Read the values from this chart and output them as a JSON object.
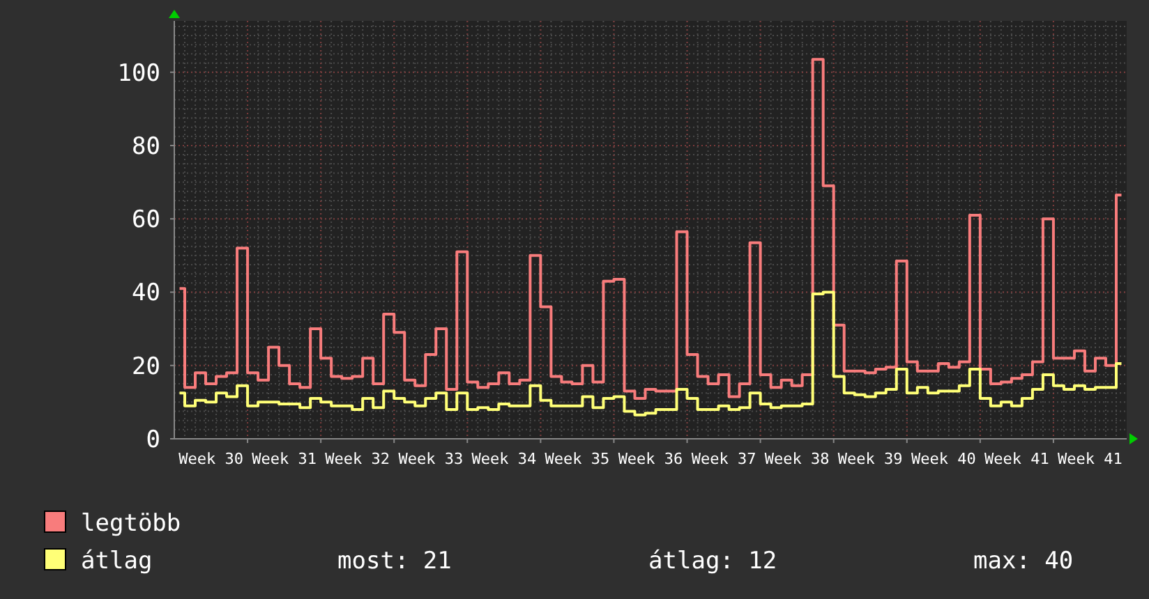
{
  "chart_data": {
    "type": "step",
    "categories": [
      null,
      null,
      null,
      "Week 30",
      null,
      null,
      null,
      null,
      null,
      null,
      "Week 31",
      null,
      null,
      null,
      null,
      null,
      null,
      "Week 32",
      null,
      null,
      null,
      null,
      null,
      null,
      "Week 33",
      null,
      null,
      null,
      null,
      null,
      null,
      "Week 34",
      null,
      null,
      null,
      null,
      null,
      null,
      "Week 35",
      null,
      null,
      null,
      null,
      null,
      null,
      "Week 36",
      null,
      null,
      null,
      null,
      null,
      null,
      "Week 37",
      null,
      null,
      null,
      null,
      null,
      null,
      "Week 38",
      null,
      null,
      null,
      null,
      null,
      null,
      "Week 39",
      null,
      null,
      null,
      null,
      null,
      null,
      "Week 40",
      null,
      null,
      null,
      null,
      null,
      null,
      "Week 41",
      null,
      null,
      null,
      null,
      null,
      null,
      "Week 41",
      null,
      null,
      null
    ],
    "series": [
      {
        "name": "legtöbb",
        "color": "#f87c7c",
        "values": [
          41,
          14,
          18,
          15,
          17,
          18,
          52,
          18,
          16,
          25,
          20,
          15,
          14,
          30,
          22,
          17,
          16.5,
          17,
          22,
          15,
          34,
          29,
          16,
          14.5,
          23,
          30,
          13.5,
          51,
          15.5,
          14,
          15,
          18,
          15,
          16,
          50,
          36,
          17,
          15.5,
          15,
          20,
          15.5,
          43,
          43.5,
          13,
          11,
          13.5,
          13,
          13,
          56.5,
          23,
          17,
          15,
          17.5,
          11.5,
          15,
          53.5,
          17.5,
          14,
          16,
          14.5,
          17.5,
          103.5,
          69,
          31,
          18.5,
          18.5,
          18,
          19,
          19.5,
          48.5,
          21,
          18.5,
          18.5,
          20.5,
          19.5,
          21,
          61,
          19,
          15,
          15.5,
          16.5,
          17.5,
          21,
          60,
          22,
          22,
          24,
          18.5,
          22,
          20,
          66.5
        ]
      },
      {
        "name": "átlag",
        "color": "#ffff77",
        "values": [
          12.5,
          9,
          10.5,
          10,
          12.5,
          11.5,
          14.5,
          9,
          10,
          10,
          9.5,
          9.5,
          8.5,
          11,
          10,
          9,
          9,
          8,
          11,
          8.5,
          13,
          11,
          10,
          9,
          11,
          12.5,
          8,
          12.5,
          8,
          8.5,
          8,
          9.5,
          9,
          9,
          14.5,
          10.5,
          9,
          9,
          9,
          11.5,
          8.5,
          11,
          11.5,
          7.5,
          6.5,
          7,
          8,
          8,
          13.5,
          11,
          8,
          8,
          9,
          8,
          8.5,
          12.5,
          9.5,
          8.5,
          9,
          9,
          9.5,
          39.5,
          40,
          17,
          12.5,
          12,
          11.5,
          12.5,
          13.5,
          19,
          12.5,
          14,
          12.5,
          13,
          13,
          14.5,
          19,
          11,
          9,
          10,
          9,
          11,
          13.5,
          17.5,
          14.5,
          13.5,
          14.5,
          13.5,
          14,
          14,
          20.5
        ]
      }
    ],
    "ylim": [
      0,
      114
    ],
    "yticks": [
      0,
      20,
      40,
      60,
      80,
      100
    ],
    "grid": true,
    "legend": "bottom",
    "annotations": [
      "most: 21",
      "átlag: 12",
      "max: 40"
    ]
  }
}
